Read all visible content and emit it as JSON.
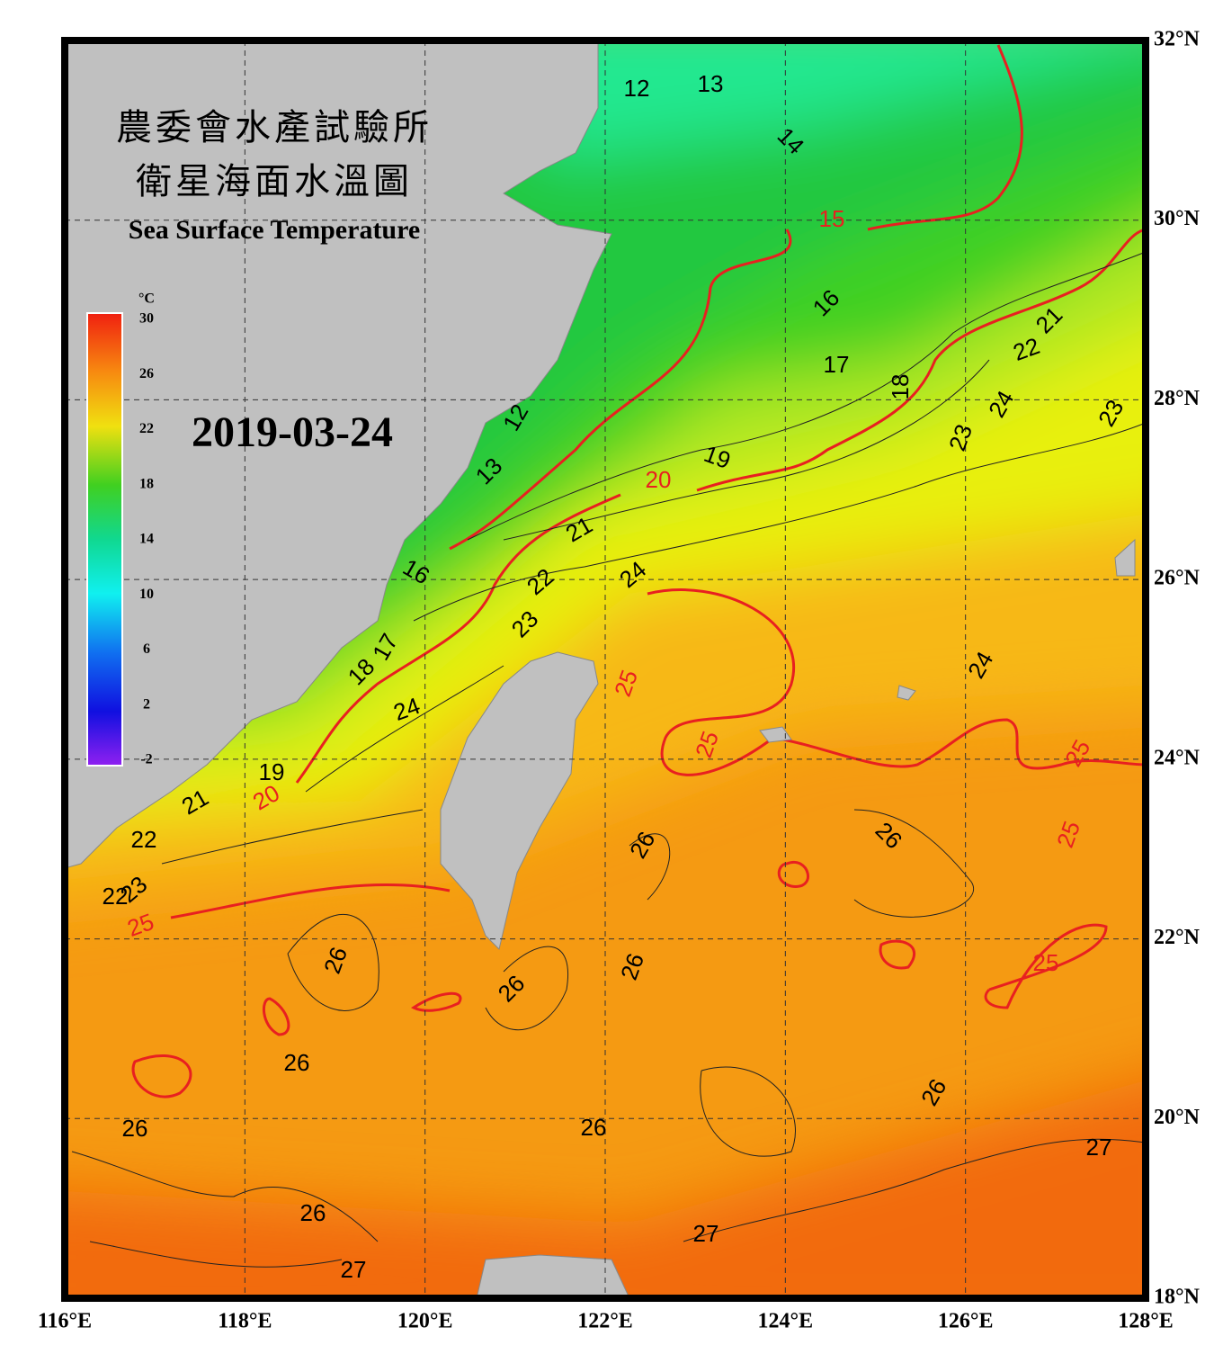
{
  "map": {
    "title_zh_1": "農委會水產試驗所",
    "title_zh_2": "衛星海面水溫圖",
    "title_en": "Sea Surface Temperature",
    "date": "2019-03-24",
    "colorbar": {
      "unit": "°C",
      "ticks": [
        30,
        26,
        22,
        18,
        14,
        10,
        6,
        2,
        -2
      ]
    },
    "xlim": [
      116,
      128
    ],
    "ylim": [
      18,
      32
    ],
    "xticks": [
      {
        "value": 116,
        "label": "116°E"
      },
      {
        "value": 118,
        "label": "118°E"
      },
      {
        "value": 120,
        "label": "120°E"
      },
      {
        "value": 122,
        "label": "122°E"
      },
      {
        "value": 124,
        "label": "124°E"
      },
      {
        "value": 126,
        "label": "126°E"
      },
      {
        "value": 128,
        "label": "128°E"
      }
    ],
    "yticks": [
      {
        "value": 18,
        "label": "18°N"
      },
      {
        "value": 20,
        "label": "20°N"
      },
      {
        "value": 22,
        "label": "22°N"
      },
      {
        "value": 24,
        "label": "24°N"
      },
      {
        "value": 26,
        "label": "26°N"
      },
      {
        "value": 28,
        "label": "28°N"
      },
      {
        "value": 30,
        "label": "30°N"
      },
      {
        "value": 32,
        "label": "32°N"
      }
    ],
    "contour_labels": [
      12,
      13,
      14,
      15,
      16,
      17,
      18,
      21,
      22,
      24,
      23,
      23,
      19,
      20,
      12,
      13,
      21,
      16,
      22,
      24,
      23,
      17,
      18,
      24,
      25,
      25,
      24,
      25,
      19,
      20,
      21,
      22,
      26,
      26,
      25,
      23,
      22,
      25,
      26,
      26,
      25,
      26,
      26,
      26,
      26,
      26,
      27,
      26,
      27,
      27
    ]
  }
}
